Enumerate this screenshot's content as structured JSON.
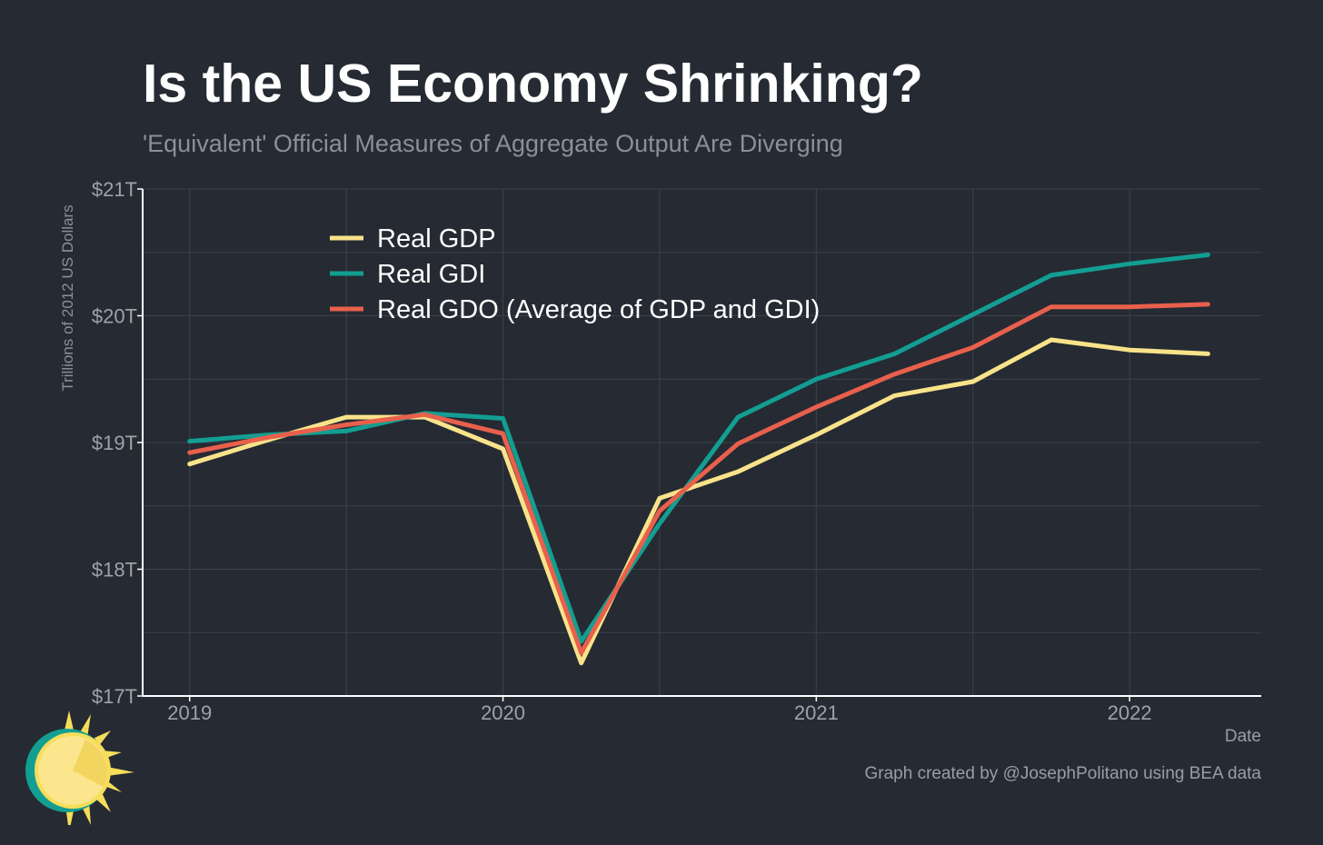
{
  "page": {
    "title": "Is the US Economy Shrinking?",
    "subtitle": "'Equivalent' Official Measures of Aggregate Output Are Diverging",
    "credit": "Graph created by @JosephPolitano using BEA data",
    "logo_icon": "sun-logo-icon"
  },
  "chart_data": {
    "type": "line",
    "title": "Is the US Economy Shrinking?",
    "subtitle": "'Equivalent' Official Measures of Aggregate Output Are Diverging",
    "xlabel": "Date",
    "ylabel": "Trillions of 2012 US Dollars",
    "ylim": [
      17,
      21
    ],
    "yticks": [
      17,
      18,
      19,
      20,
      21
    ],
    "ytick_labels": [
      "$17T",
      "$18T",
      "$19T",
      "$20T",
      "$21T"
    ],
    "xlim": [
      2018.85,
      2022.42
    ],
    "xticks": [
      2019,
      2020,
      2021,
      2022
    ],
    "xtick_labels": [
      "2019",
      "2020",
      "2021",
      "2022"
    ],
    "grid": true,
    "legend_position": "top-left",
    "x": [
      "2019-01-01",
      "2019-04-01",
      "2019-07-01",
      "2019-10-01",
      "2020-01-01",
      "2020-04-01",
      "2020-07-01",
      "2020-10-01",
      "2021-01-01",
      "2021-04-01",
      "2021-07-01",
      "2021-10-01",
      "2022-01-01",
      "2022-04-01"
    ],
    "series": [
      {
        "name": "Real GDP",
        "color": "#f8e38a",
        "values": [
          18.83,
          19.02,
          19.2,
          19.2,
          18.95,
          17.26,
          18.56,
          18.77,
          19.06,
          19.37,
          19.48,
          19.81,
          19.73,
          19.7
        ]
      },
      {
        "name": "Real GDI",
        "color": "#139e92",
        "values": [
          19.01,
          19.06,
          19.09,
          19.23,
          19.19,
          17.43,
          18.36,
          19.2,
          19.5,
          19.7,
          20.01,
          20.32,
          20.41,
          20.48
        ]
      },
      {
        "name": "Real GDO (Average of GDP and GDI)",
        "color": "#e8604c",
        "values": [
          18.92,
          19.04,
          19.14,
          19.22,
          19.07,
          17.34,
          18.46,
          18.99,
          19.28,
          19.54,
          19.75,
          20.07,
          20.07,
          20.09
        ]
      }
    ]
  }
}
